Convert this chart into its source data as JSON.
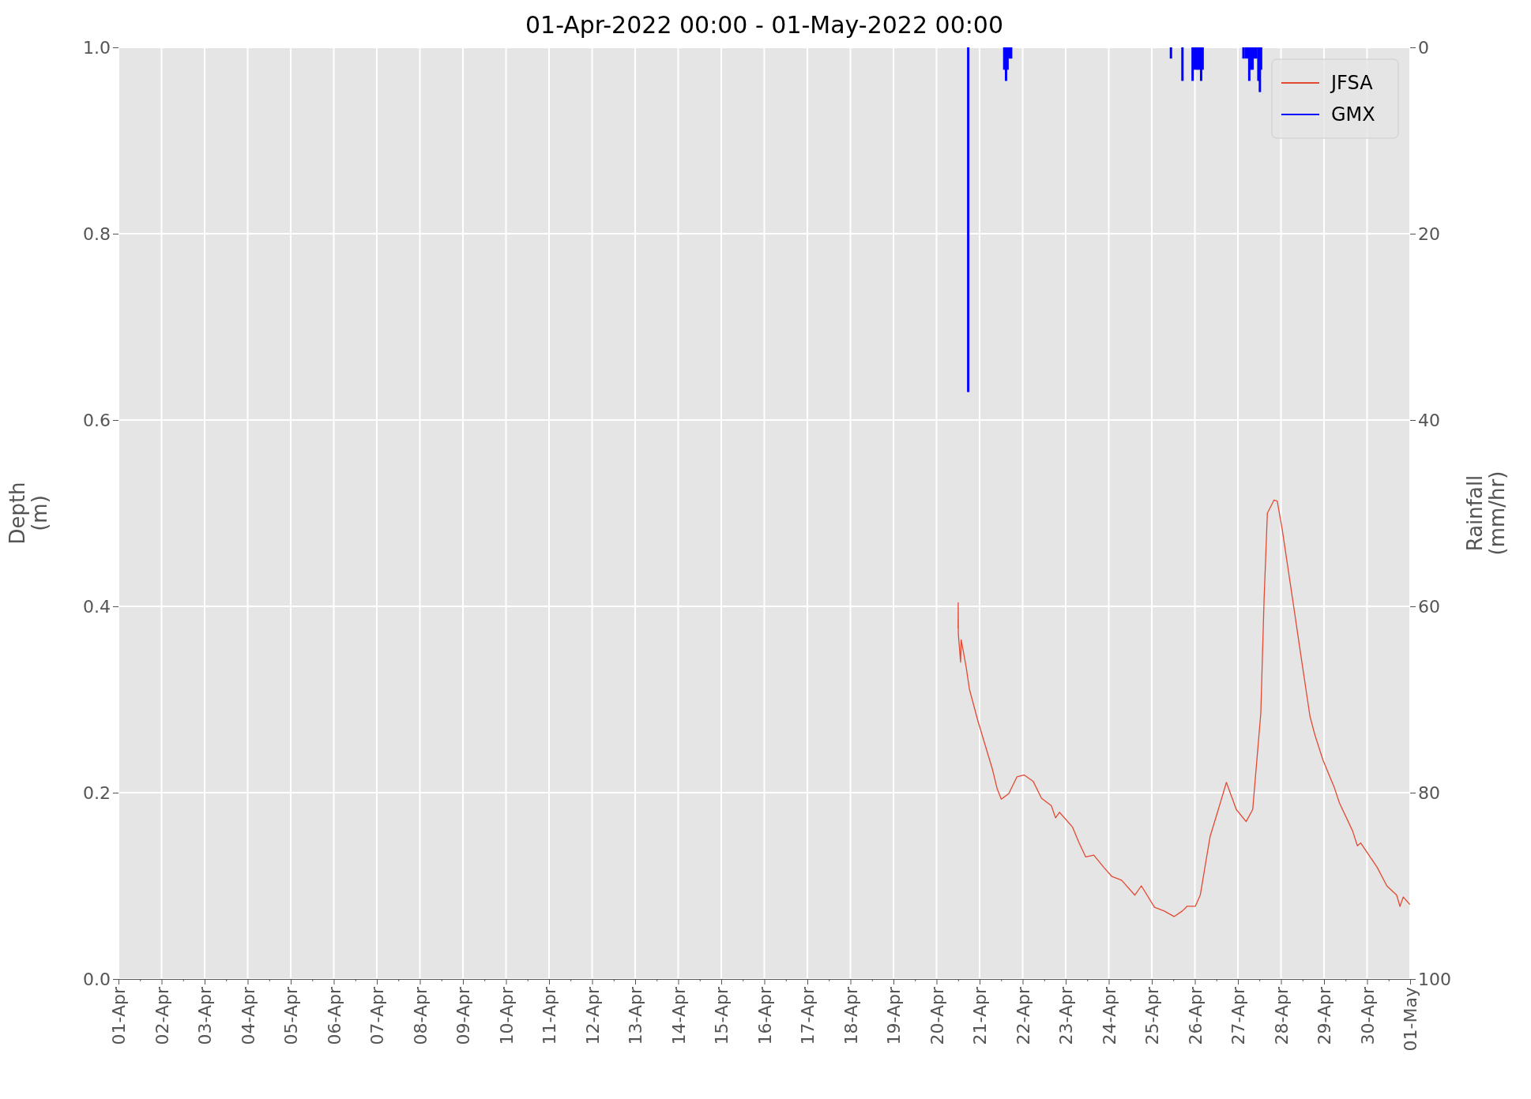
{
  "chart_data": {
    "type": "line",
    "title": "01-Apr-2022 00:00 - 01-May-2022 00:00",
    "ylabel": "Depth\n(m)",
    "y2label": "Rainfall\n(mm/hr)",
    "series": [
      {
        "name": "JFSA",
        "color": "#e24a33",
        "x": [
          "2022-04-20T12:00",
          "2022-04-20T12:05",
          "2022-04-20T12:10",
          "2022-04-20T13:25",
          "2022-04-20T13:45",
          "2022-04-20T16:30",
          "2022-04-20T18:20",
          "2022-04-20T22:55",
          "2022-04-21T07:10",
          "2022-04-21T09:50",
          "2022-04-21T12:05",
          "2022-04-21T16:15",
          "2022-04-21T20:50",
          "2022-04-22T00:50",
          "2022-04-22T05:55",
          "2022-04-22T10:30",
          "2022-04-22T16:00",
          "2022-04-22T18:20",
          "2022-04-22T20:30",
          "2022-04-23T03:50",
          "2022-04-23T07:30",
          "2022-04-23T11:10",
          "2022-04-23T15:40",
          "2022-04-23T21:10",
          "2022-04-24T01:45",
          "2022-04-24T07:10",
          "2022-04-24T14:30",
          "2022-04-24T18:10",
          "2022-04-25T01:30",
          "2022-04-25T06:55",
          "2022-04-25T12:25",
          "2022-04-25T17:00",
          "2022-04-25T19:40",
          "2022-04-26T00:15",
          "2022-04-26T03:00",
          "2022-04-26T08:30",
          "2022-04-26T13:05",
          "2022-04-26T17:35",
          "2022-04-26T23:05",
          "2022-04-27T04:35",
          "2022-04-27T08:15",
          "2022-04-27T12:45",
          "2022-04-27T14:35",
          "2022-04-27T16:25",
          "2022-04-27T20:05",
          "2022-04-27T21:55",
          "2022-04-28T00:40",
          "2022-04-28T07:00",
          "2022-04-28T11:35",
          "2022-04-28T16:10",
          "2022-04-28T18:55",
          "2022-04-28T23:25",
          "2022-04-29T05:50",
          "2022-04-29T08:35",
          "2022-04-29T15:55",
          "2022-04-29T18:35",
          "2022-04-29T20:25",
          "2022-04-30T05:35",
          "2022-04-30T11:00",
          "2022-04-30T16:30",
          "2022-04-30T18:20",
          "2022-04-30T20:10",
          "2022-04-30T23:50"
        ],
        "values": [
          0.376,
          0.404,
          0.37,
          0.34,
          0.364,
          0.335,
          0.311,
          0.278,
          0.225,
          0.204,
          0.193,
          0.199,
          0.217,
          0.219,
          0.212,
          0.194,
          0.186,
          0.173,
          0.179,
          0.163,
          0.146,
          0.131,
          0.133,
          0.12,
          0.11,
          0.106,
          0.09,
          0.1,
          0.077,
          0.073,
          0.067,
          0.073,
          0.078,
          0.078,
          0.09,
          0.153,
          0.182,
          0.211,
          0.182,
          0.169,
          0.182,
          0.285,
          0.407,
          0.5,
          0.514,
          0.513,
          0.483,
          0.401,
          0.341,
          0.282,
          0.262,
          0.235,
          0.205,
          0.189,
          0.159,
          0.143,
          0.146,
          0.12,
          0.1,
          0.09,
          0.078,
          0.088,
          0.08
        ]
      },
      {
        "name": "GMX",
        "type": "bar",
        "axis": "y2",
        "color": "#0000ff",
        "x": [
          "2022-04-20T17:40",
          "2022-04-21T13:45",
          "2022-04-21T14:45",
          "2022-04-21T15:35",
          "2022-04-21T16:35",
          "2022-04-21T17:35",
          "2022-04-25T10:40",
          "2022-04-25T17:05",
          "2022-04-25T22:45",
          "2022-04-25T23:35",
          "2022-04-26T00:50",
          "2022-04-26T01:50",
          "2022-04-26T02:50",
          "2022-04-26T03:30",
          "2022-04-26T04:20",
          "2022-04-27T03:05",
          "2022-04-27T04:20",
          "2022-04-27T05:30",
          "2022-04-27T06:20",
          "2022-04-27T07:20",
          "2022-04-27T08:10",
          "2022-04-27T09:10",
          "2022-04-27T10:15",
          "2022-04-27T11:25",
          "2022-04-27T12:15",
          "2022-04-27T12:55"
        ],
        "values": [
          37,
          2.4,
          3.6,
          2.4,
          1.2,
          1.2,
          1.2,
          3.6,
          3.6,
          2.4,
          2.4,
          2.4,
          2.4,
          3.6,
          2.4,
          1.2,
          1.2,
          1.2,
          3.6,
          2.4,
          2.4,
          1.2,
          1.2,
          3.6,
          4.8,
          2.4
        ]
      }
    ],
    "xlim": [
      "2022-04-01",
      "2022-05-01"
    ],
    "xticks": [
      {
        "value": "2022-04-01",
        "label": "01-Apr"
      },
      {
        "value": "2022-04-01T12:00",
        "label": null
      },
      {
        "value": "2022-04-02",
        "label": "02-Apr"
      },
      {
        "value": "2022-04-02T12:00",
        "label": null
      },
      {
        "value": "2022-04-03",
        "label": "03-Apr"
      },
      {
        "value": "2022-04-03T12:00",
        "label": null
      },
      {
        "value": "2022-04-04",
        "label": "04-Apr"
      },
      {
        "value": "2022-04-04T12:00",
        "label": null
      },
      {
        "value": "2022-04-05",
        "label": "05-Apr"
      },
      {
        "value": "2022-04-05T12:00",
        "label": null
      },
      {
        "value": "2022-04-06",
        "label": "06-Apr"
      },
      {
        "value": "2022-04-06T12:00",
        "label": null
      },
      {
        "value": "2022-04-07",
        "label": "07-Apr"
      },
      {
        "value": "2022-04-07T12:00",
        "label": null
      },
      {
        "value": "2022-04-08",
        "label": "08-Apr"
      },
      {
        "value": "2022-04-08T12:00",
        "label": null
      },
      {
        "value": "2022-04-09",
        "label": "09-Apr"
      },
      {
        "value": "2022-04-09T12:00",
        "label": null
      },
      {
        "value": "2022-04-10",
        "label": "10-Apr"
      },
      {
        "value": "2022-04-10T12:00",
        "label": null
      },
      {
        "value": "2022-04-11",
        "label": "11-Apr"
      },
      {
        "value": "2022-04-11T12:00",
        "label": null
      },
      {
        "value": "2022-04-12",
        "label": "12-Apr"
      },
      {
        "value": "2022-04-12T12:00",
        "label": null
      },
      {
        "value": "2022-04-13",
        "label": "13-Apr"
      },
      {
        "value": "2022-04-13T12:00",
        "label": null
      },
      {
        "value": "2022-04-14",
        "label": "14-Apr"
      },
      {
        "value": "2022-04-14T12:00",
        "label": null
      },
      {
        "value": "2022-04-15",
        "label": "15-Apr"
      },
      {
        "value": "2022-04-15T12:00",
        "label": null
      },
      {
        "value": "2022-04-16",
        "label": "16-Apr"
      },
      {
        "value": "2022-04-16T12:00",
        "label": null
      },
      {
        "value": "2022-04-17",
        "label": "17-Apr"
      },
      {
        "value": "2022-04-17T12:00",
        "label": null
      },
      {
        "value": "2022-04-18",
        "label": "18-Apr"
      },
      {
        "value": "2022-04-18T12:00",
        "label": null
      },
      {
        "value": "2022-04-19",
        "label": "19-Apr"
      },
      {
        "value": "2022-04-19T12:00",
        "label": null
      },
      {
        "value": "2022-04-20",
        "label": "20-Apr"
      },
      {
        "value": "2022-04-20T12:00",
        "label": null
      },
      {
        "value": "2022-04-21",
        "label": "21-Apr"
      },
      {
        "value": "2022-04-21T12:00",
        "label": null
      },
      {
        "value": "2022-04-22",
        "label": "22-Apr"
      },
      {
        "value": "2022-04-22T12:00",
        "label": null
      },
      {
        "value": "2022-04-23",
        "label": "23-Apr"
      },
      {
        "value": "2022-04-23T12:00",
        "label": null
      },
      {
        "value": "2022-04-24",
        "label": "24-Apr"
      },
      {
        "value": "2022-04-24T12:00",
        "label": null
      },
      {
        "value": "2022-04-25",
        "label": "25-Apr"
      },
      {
        "value": "2022-04-25T12:00",
        "label": null
      },
      {
        "value": "2022-04-26",
        "label": "26-Apr"
      },
      {
        "value": "2022-04-26T12:00",
        "label": null
      },
      {
        "value": "2022-04-27",
        "label": "27-Apr"
      },
      {
        "value": "2022-04-27T12:00",
        "label": null
      },
      {
        "value": "2022-04-28",
        "label": "28-Apr"
      },
      {
        "value": "2022-04-28T12:00",
        "label": null
      },
      {
        "value": "2022-04-29",
        "label": "29-Apr"
      },
      {
        "value": "2022-04-29T12:00",
        "label": null
      },
      {
        "value": "2022-04-30",
        "label": "30-Apr"
      },
      {
        "value": "2022-04-30T12:00",
        "label": null
      },
      {
        "value": "2022-05-01",
        "label": "01-May"
      }
    ],
    "ylim": [
      0,
      1
    ],
    "yticks": [
      {
        "value": 0,
        "label": "0.0"
      },
      {
        "value": 0.2,
        "label": "0.2"
      },
      {
        "value": 0.4,
        "label": "0.4"
      },
      {
        "value": 0.6,
        "label": "0.6"
      },
      {
        "value": 0.8,
        "label": "0.8"
      },
      {
        "value": 1,
        "label": "1.0"
      }
    ],
    "y2lim": [
      100,
      0
    ],
    "y2ticks": [
      0,
      20,
      40,
      60,
      80,
      100
    ],
    "grid": true,
    "legend": "top right"
  }
}
